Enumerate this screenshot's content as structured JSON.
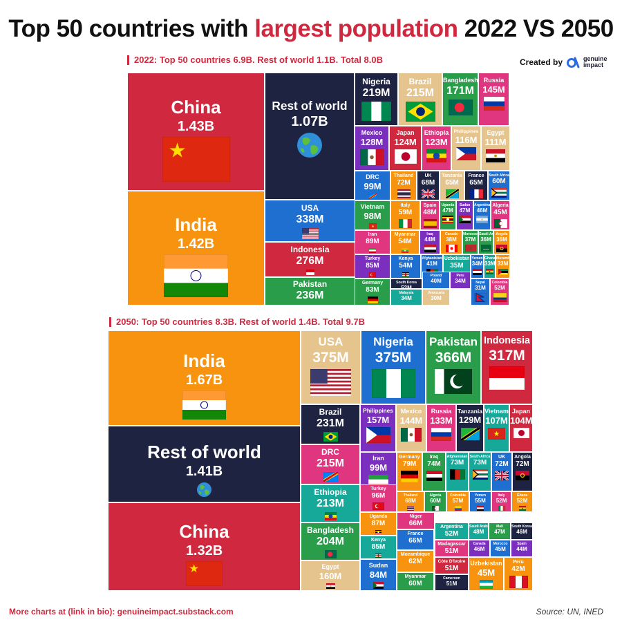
{
  "title": {
    "part1": "Top 50 countries with ",
    "highlight": "largest population",
    "part2": " 2022 VS 2050"
  },
  "credit": {
    "label": "Created by",
    "brand_line1": "genuine",
    "brand_line2": "impact"
  },
  "footer": {
    "left": "More charts at (link in bio): genuineimpact.substack.com",
    "right": "Source: UN, INED"
  },
  "colors": {
    "red": "#d0293f",
    "orange": "#f7930f",
    "navy": "#1d2340",
    "blue": "#1f6fd0",
    "green": "#2a9d4b",
    "tan": "#e5c48e",
    "purple": "#7a2fbe",
    "pink": "#e0367f",
    "teal": "#16a99a"
  },
  "chart_data": [
    {
      "type": "treemap",
      "label": "2022:  Top 50 countries 6.9B. Rest of world 1.1B. Total 8.0B",
      "items": [
        {
          "name": "China",
          "value": "1.43B",
          "flag": "cn",
          "color": "#d0293f"
        },
        {
          "name": "India",
          "value": "1.42B",
          "flag": "in",
          "color": "#f7930f"
        },
        {
          "name": "Rest of world",
          "value": "1.07B",
          "flag": "globe",
          "color": "#1d2340"
        },
        {
          "name": "USA",
          "value": "338M",
          "flag": "us",
          "color": "#1f6fd0"
        },
        {
          "name": "Indonesia",
          "value": "276M",
          "flag": "id",
          "color": "#d0293f"
        },
        {
          "name": "Pakistan",
          "value": "236M",
          "flag": "pk",
          "color": "#2a9d4b"
        },
        {
          "name": "Nigeria",
          "value": "219M",
          "flag": "ng",
          "color": "#1d2340"
        },
        {
          "name": "Brazil",
          "value": "215M",
          "flag": "br",
          "color": "#e5c48e"
        },
        {
          "name": "Bangladesh",
          "value": "171M",
          "flag": "bd",
          "color": "#2a9d4b"
        },
        {
          "name": "Russia",
          "value": "145M",
          "flag": "ru",
          "color": "#e0367f"
        },
        {
          "name": "Mexico",
          "value": "128M",
          "flag": "mx",
          "color": "#7a2fbe"
        },
        {
          "name": "Japan",
          "value": "124M",
          "flag": "jp",
          "color": "#d0293f"
        },
        {
          "name": "Ethiopia",
          "value": "123M",
          "flag": "et",
          "color": "#e0367f"
        },
        {
          "name": "Philippines",
          "value": "116M",
          "flag": "ph",
          "color": "#e5c48e"
        },
        {
          "name": "Egypt",
          "value": "111M",
          "flag": "eg",
          "color": "#e5c48e"
        },
        {
          "name": "DRC",
          "value": "99M",
          "flag": "cd",
          "color": "#1f6fd0"
        },
        {
          "name": "Thailand",
          "value": "72M",
          "flag": "th",
          "color": "#f7930f"
        },
        {
          "name": "UK",
          "value": "68M",
          "flag": "gb",
          "color": "#1d2340"
        },
        {
          "name": "Tanzania",
          "value": "65M",
          "flag": "tz",
          "color": "#e5c48e"
        },
        {
          "name": "France",
          "value": "65M",
          "flag": "fr",
          "color": "#1d2340"
        },
        {
          "name": "South Africa",
          "value": "60M",
          "flag": "za",
          "color": "#1f6fd0"
        },
        {
          "name": "Vietnam",
          "value": "98M",
          "flag": "vn",
          "color": "#2a9d4b"
        },
        {
          "name": "Italy",
          "value": "59M",
          "flag": "it",
          "color": "#f7930f"
        },
        {
          "name": "Spain",
          "value": "48M",
          "flag": "es",
          "color": "#e0367f"
        },
        {
          "name": "Uganda",
          "value": "47M",
          "flag": "ug",
          "color": "#2a9d4b"
        },
        {
          "name": "Sudan",
          "value": "47M",
          "flag": "sd",
          "color": "#7a2fbe"
        },
        {
          "name": "Argentina",
          "value": "46M",
          "flag": "ar",
          "color": "#1f6fd0"
        },
        {
          "name": "Algeria",
          "value": "45M",
          "flag": "dz",
          "color": "#e0367f"
        },
        {
          "name": "Iran",
          "value": "89M",
          "flag": "ir",
          "color": "#e0367f"
        },
        {
          "name": "Myanmar",
          "value": "54M",
          "flag": "mm",
          "color": "#f7930f"
        },
        {
          "name": "Iraq",
          "value": "44M",
          "flag": "iq",
          "color": "#7a2fbe"
        },
        {
          "name": "Canada",
          "value": "38M",
          "flag": "ca",
          "color": "#f7930f"
        },
        {
          "name": "Morocco",
          "value": "37M",
          "flag": "ma",
          "color": "#2a9d4b"
        },
        {
          "name": "Saudi Arabia",
          "value": "36M",
          "flag": "sa",
          "color": "#2a9d4b"
        },
        {
          "name": "Angola",
          "value": "36M",
          "flag": "ao",
          "color": "#f7930f"
        },
        {
          "name": "Turkey",
          "value": "85M",
          "flag": "tr",
          "color": "#7a2fbe"
        },
        {
          "name": "Kenya",
          "value": "54M",
          "flag": "ke",
          "color": "#1f6fd0"
        },
        {
          "name": "Afghanistan",
          "value": "41M",
          "flag": "af",
          "color": "#1f6fd0"
        },
        {
          "name": "Uzbekistan",
          "value": "35M",
          "flag": "uz",
          "color": "#16a99a"
        },
        {
          "name": "Yemen",
          "value": "34M",
          "flag": "ye",
          "color": "#1f6fd0"
        },
        {
          "name": "Ghana",
          "value": "33M",
          "flag": "gh",
          "color": "#16a99a"
        },
        {
          "name": "Mozambique",
          "value": "33M",
          "flag": "mz",
          "color": "#f7930f"
        },
        {
          "name": "Germany",
          "value": "83M",
          "flag": "de",
          "color": "#2a9d4b"
        },
        {
          "name": "South Korea",
          "value": "52M",
          "flag": "kr",
          "color": "#1d2340"
        },
        {
          "name": "Poland",
          "value": "40M",
          "flag": "pl",
          "color": "#1f6fd0"
        },
        {
          "name": "Peru",
          "value": "34M",
          "flag": "pe",
          "color": "#7a2fbe"
        },
        {
          "name": "Nepal",
          "value": "31M",
          "flag": "np",
          "color": "#1f6fd0"
        },
        {
          "name": "Colombia",
          "value": "52M",
          "flag": "co",
          "color": "#e0367f"
        },
        {
          "name": "Malaysia",
          "value": "34M",
          "flag": "my",
          "color": "#16a99a"
        },
        {
          "name": "Venezuela",
          "value": "30M",
          "flag": "ve",
          "color": "#e5c48e"
        }
      ]
    },
    {
      "type": "treemap",
      "label": "2050: Top 50 countries 8.3B. Rest of world 1.4B. Total 9.7B",
      "items": [
        {
          "name": "India",
          "value": "1.67B",
          "flag": "in",
          "color": "#f7930f"
        },
        {
          "name": "Rest of world",
          "value": "1.41B",
          "flag": "globe",
          "color": "#1d2340"
        },
        {
          "name": "China",
          "value": "1.32B",
          "flag": "cn",
          "color": "#d0293f"
        },
        {
          "name": "USA",
          "value": "375M",
          "flag": "us",
          "color": "#e5c48e"
        },
        {
          "name": "Nigeria",
          "value": "375M",
          "flag": "ng",
          "color": "#1f6fd0"
        },
        {
          "name": "Pakistan",
          "value": "366M",
          "flag": "pk",
          "color": "#2a9d4b"
        },
        {
          "name": "Indonesia",
          "value": "317M",
          "flag": "id",
          "color": "#d0293f"
        },
        {
          "name": "Brazil",
          "value": "231M",
          "flag": "br",
          "color": "#1d2340"
        },
        {
          "name": "DRC",
          "value": "215M",
          "flag": "cd",
          "color": "#e0367f"
        },
        {
          "name": "Ethiopia",
          "value": "213M",
          "flag": "et",
          "color": "#16a99a"
        },
        {
          "name": "Bangladesh",
          "value": "204M",
          "flag": "bd",
          "color": "#2a9d4b"
        },
        {
          "name": "Egypt",
          "value": "160M",
          "flag": "eg",
          "color": "#e5c48e"
        },
        {
          "name": "Philippines",
          "value": "157M",
          "flag": "ph",
          "color": "#7a2fbe"
        },
        {
          "name": "Mexico",
          "value": "144M",
          "flag": "mx",
          "color": "#e5c48e"
        },
        {
          "name": "Russia",
          "value": "133M",
          "flag": "ru",
          "color": "#e0367f"
        },
        {
          "name": "Tanzania",
          "value": "129M",
          "flag": "tz",
          "color": "#1d2340"
        },
        {
          "name": "Vietnam",
          "value": "107M",
          "flag": "vn",
          "color": "#16a99a"
        },
        {
          "name": "Japan",
          "value": "104M",
          "flag": "jp",
          "color": "#d0293f"
        },
        {
          "name": "Iran",
          "value": "99M",
          "flag": "ir",
          "color": "#7a2fbe"
        },
        {
          "name": "Germany",
          "value": "79M",
          "flag": "de",
          "color": "#f7930f"
        },
        {
          "name": "Iraq",
          "value": "74M",
          "flag": "iq",
          "color": "#2a9d4b"
        },
        {
          "name": "Afghanistan",
          "value": "73M",
          "flag": "af",
          "color": "#16a99a"
        },
        {
          "name": "South Africa",
          "value": "73M",
          "flag": "za",
          "color": "#16a99a"
        },
        {
          "name": "UK",
          "value": "72M",
          "flag": "gb",
          "color": "#1f6fd0"
        },
        {
          "name": "Angola",
          "value": "72M",
          "flag": "ao",
          "color": "#1d2340"
        },
        {
          "name": "Turkey",
          "value": "96M",
          "flag": "tr",
          "color": "#e0367f"
        },
        {
          "name": "Thailand",
          "value": "68M",
          "flag": "th",
          "color": "#f7930f"
        },
        {
          "name": "Algeria",
          "value": "60M",
          "flag": "dz",
          "color": "#2a9d4b"
        },
        {
          "name": "Colombia",
          "value": "57M",
          "flag": "co",
          "color": "#f7930f"
        },
        {
          "name": "Yemen",
          "value": "55M",
          "flag": "ye",
          "color": "#1f6fd0"
        },
        {
          "name": "Italy",
          "value": "52M",
          "flag": "it",
          "color": "#e0367f"
        },
        {
          "name": "Ghana",
          "value": "52M",
          "flag": "gh",
          "color": "#f7930f"
        },
        {
          "name": "Uganda",
          "value": "87M",
          "flag": "ug",
          "color": "#f7930f"
        },
        {
          "name": "Niger",
          "value": "66M",
          "flag": "ne",
          "color": "#e0367f"
        },
        {
          "name": "Argentina",
          "value": "52M",
          "flag": "ar",
          "color": "#16a99a"
        },
        {
          "name": "Saudi Arabia",
          "value": "48M",
          "flag": "sa",
          "color": "#16a99a"
        },
        {
          "name": "Mali",
          "value": "47M",
          "flag": "ml",
          "color": "#2a9d4b"
        },
        {
          "name": "South Korea",
          "value": "46M",
          "flag": "kr",
          "color": "#1d2340"
        },
        {
          "name": "Kenya",
          "value": "85M",
          "flag": "ke",
          "color": "#16a99a"
        },
        {
          "name": "France",
          "value": "66M",
          "flag": "fr",
          "color": "#1f6fd0"
        },
        {
          "name": "Madagascar",
          "value": "51M",
          "flag": "mg",
          "color": "#e0367f"
        },
        {
          "name": "Canada",
          "value": "46M",
          "flag": "ca",
          "color": "#7a2fbe"
        },
        {
          "name": "Morocco",
          "value": "45M",
          "flag": "ma",
          "color": "#1f6fd0"
        },
        {
          "name": "Spain",
          "value": "44M",
          "flag": "es",
          "color": "#7a2fbe"
        },
        {
          "name": "Sudan",
          "value": "84M",
          "flag": "sd",
          "color": "#1f6fd0"
        },
        {
          "name": "Mozambique",
          "value": "62M",
          "flag": "mz",
          "color": "#f7930f"
        },
        {
          "name": "Côte D'Ivoire",
          "value": "51M",
          "flag": "ci",
          "color": "#d0293f"
        },
        {
          "name": "Myanmar",
          "value": "60M",
          "flag": "mm",
          "color": "#2a9d4b"
        },
        {
          "name": "Cameroon",
          "value": "51M",
          "flag": "cm",
          "color": "#1d2340"
        },
        {
          "name": "Uzbekistan",
          "value": "45M",
          "flag": "uz",
          "color": "#f7930f"
        },
        {
          "name": "Peru",
          "value": "42M",
          "flag": "pe",
          "color": "#f7930f"
        }
      ]
    }
  ]
}
